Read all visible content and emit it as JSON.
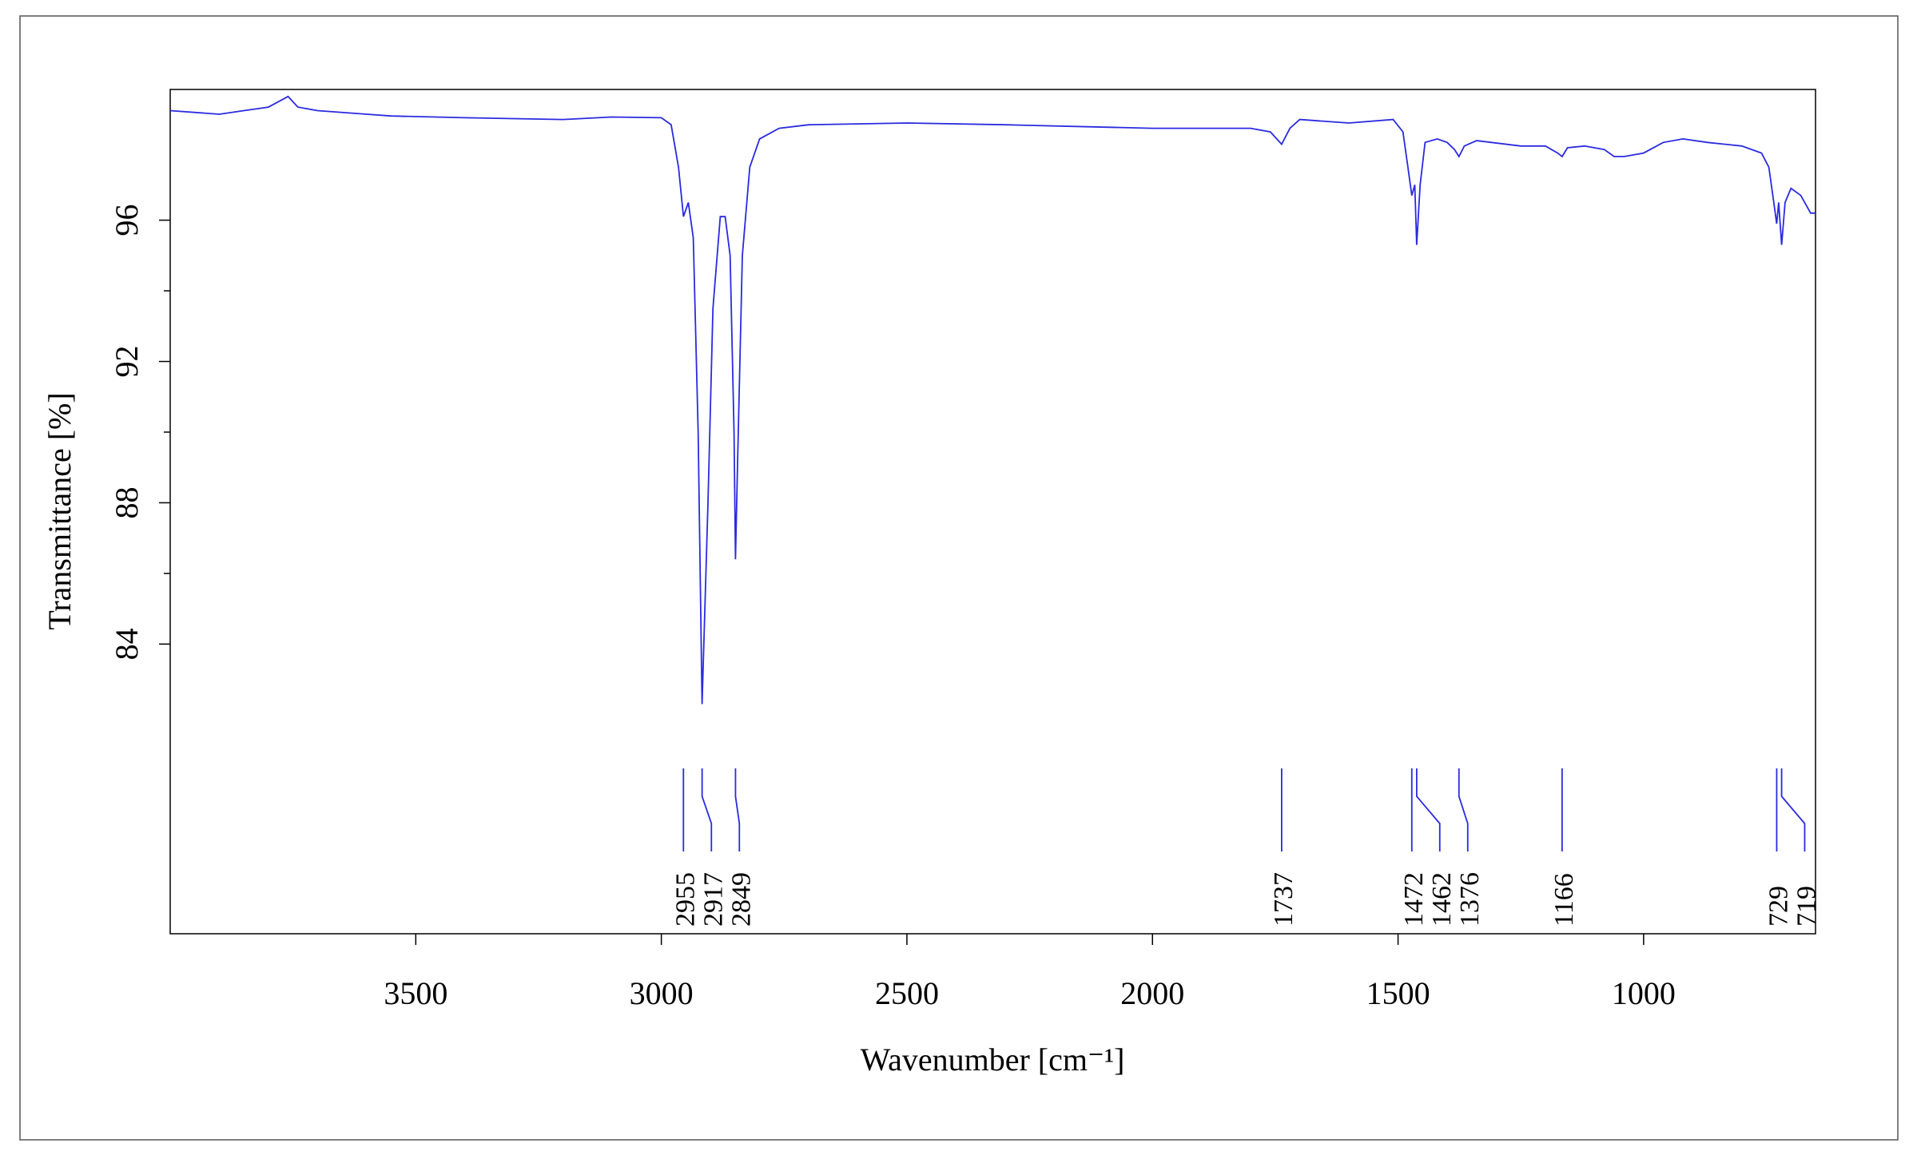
{
  "chart_data": {
    "type": "line",
    "xlabel": "Wavenumber [cm⁻¹]",
    "ylabel": "Transmittance [%]",
    "xlim": [
      4000,
      650
    ],
    "ylim": [
      75.8,
      99.7
    ],
    "xticks": [
      3500,
      3000,
      2500,
      2000,
      1500,
      1000
    ],
    "yticks": [
      84,
      88,
      92,
      96
    ],
    "yminorticks": [
      86,
      90,
      94
    ],
    "color": "#2a2ae0",
    "x": [
      4000,
      3900,
      3850,
      3800,
      3760,
      3740,
      3700,
      3600,
      3550,
      3400,
      3200,
      3100,
      3000,
      2980,
      2965,
      2955,
      2945,
      2935,
      2925,
      2917,
      2905,
      2895,
      2880,
      2870,
      2860,
      2852,
      2849,
      2845,
      2835,
      2820,
      2800,
      2760,
      2700,
      2500,
      2300,
      2000,
      1800,
      1760,
      1737,
      1720,
      1700,
      1600,
      1510,
      1490,
      1480,
      1472,
      1466,
      1462,
      1455,
      1445,
      1420,
      1400,
      1385,
      1376,
      1365,
      1340,
      1250,
      1200,
      1175,
      1166,
      1155,
      1120,
      1080,
      1060,
      1040,
      1000,
      960,
      920,
      870,
      800,
      760,
      745,
      735,
      729,
      725,
      719,
      712,
      700,
      680,
      660,
      650
    ],
    "values": [
      99.1,
      99.0,
      99.1,
      99.2,
      99.5,
      99.2,
      99.1,
      99.0,
      98.95,
      98.9,
      98.85,
      98.92,
      98.9,
      98.7,
      97.5,
      96.1,
      96.5,
      95.5,
      90,
      82.3,
      88,
      93.5,
      96.1,
      96.1,
      95,
      90,
      86.4,
      89,
      95,
      97.5,
      98.3,
      98.6,
      98.7,
      98.75,
      98.7,
      98.6,
      98.6,
      98.5,
      98.15,
      98.6,
      98.85,
      98.75,
      98.85,
      98.5,
      97.5,
      96.7,
      97.0,
      95.3,
      97,
      98.2,
      98.3,
      98.2,
      98.0,
      97.8,
      98.1,
      98.25,
      98.1,
      98.1,
      97.9,
      97.8,
      98.05,
      98.1,
      98.0,
      97.8,
      97.8,
      97.9,
      98.2,
      98.3,
      98.2,
      98.1,
      97.9,
      97.5,
      96.5,
      95.9,
      96.5,
      95.3,
      96.5,
      96.9,
      96.7,
      96.2,
      96.2
    ],
    "peaks": [
      2955,
      2917,
      2849,
      1737,
      1472,
      1462,
      1376,
      1166,
      729,
      719
    ]
  }
}
